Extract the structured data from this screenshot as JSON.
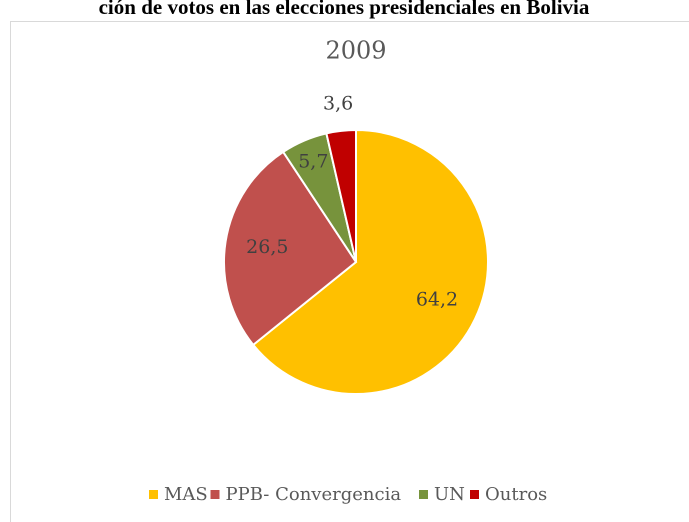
{
  "heading": "ción de votos en las elecciones presidenciales en Bolivia",
  "chart_data": {
    "type": "pie",
    "title": "2009",
    "categories": [
      "MAS",
      "PPB- Convergencia",
      "UN",
      "Outros"
    ],
    "values": [
      64.2,
      26.5,
      5.7,
      3.6
    ],
    "value_labels": [
      "64,2",
      "26,5",
      "5,7",
      "3,6"
    ],
    "colors": [
      "#FFC000",
      "#C0504D",
      "#77933C",
      "#C00000"
    ],
    "legend": "bottom"
  }
}
